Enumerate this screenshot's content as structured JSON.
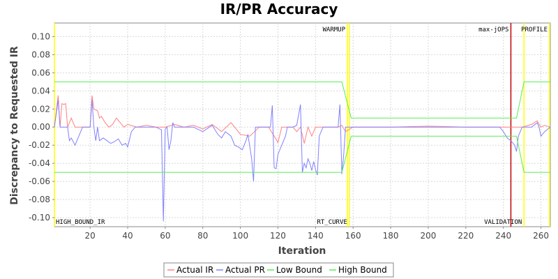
{
  "chart_data": {
    "type": "line",
    "title": "IR/PR Accuracy",
    "xlabel": "Iteration",
    "ylabel": "Discrepancy to Requested IR",
    "xlim": [
      1,
      265
    ],
    "ylim": [
      -0.11,
      0.115
    ],
    "x_ticks": [
      20,
      40,
      60,
      80,
      100,
      120,
      140,
      160,
      180,
      200,
      220,
      240,
      260
    ],
    "y_ticks": [
      -0.1,
      -0.08,
      -0.06,
      -0.04,
      -0.02,
      0.0,
      0.02,
      0.04,
      0.06,
      0.08,
      0.1
    ],
    "y_tick_labels": [
      "-0.10",
      "-0.08",
      "-0.06",
      "-0.04",
      "-0.02",
      "0.00",
      "0.02",
      "0.04",
      "0.06",
      "0.08",
      "0.10"
    ],
    "grid": true,
    "legend_position": "bottom",
    "markers": [
      {
        "label": "HIGH_BOUND_IR",
        "x": 1,
        "color": "#FFFF00",
        "label_pos": "bottom"
      },
      {
        "label": "WARMUP",
        "x": 157,
        "color": "#FFFF00",
        "label_pos": "top"
      },
      {
        "label": "RT_CURVE",
        "x": 158,
        "color": "#FFFF00",
        "label_pos": "bottom"
      },
      {
        "label": "max-jOPS",
        "x": 244,
        "color": "#C00000",
        "label_pos": "top"
      },
      {
        "label": "VALIDATION",
        "x": 251,
        "color": "#FFFF00",
        "label_pos": "bottom"
      },
      {
        "label": "PROFILE",
        "x": 265,
        "color": "#FFFF00",
        "label_pos": "top"
      }
    ],
    "series": [
      {
        "name": "Actual IR",
        "color": "#FF8080",
        "points": [
          [
            1,
            0
          ],
          [
            3,
            0.035
          ],
          [
            4,
            0
          ],
          [
            5,
            0.026
          ],
          [
            6,
            0.025
          ],
          [
            7,
            0.026
          ],
          [
            8,
            0
          ],
          [
            10,
            0.01
          ],
          [
            12,
            0
          ],
          [
            20,
            0
          ],
          [
            21,
            0.035
          ],
          [
            22,
            0.02
          ],
          [
            24,
            0.018
          ],
          [
            25,
            0.01
          ],
          [
            26,
            0.012
          ],
          [
            28,
            0.005
          ],
          [
            30,
            0
          ],
          [
            32,
            0.003
          ],
          [
            34,
            0.01
          ],
          [
            36,
            0.005
          ],
          [
            38,
            0
          ],
          [
            40,
            0.003
          ],
          [
            45,
            0
          ],
          [
            50,
            0.002
          ],
          [
            55,
            0
          ],
          [
            60,
            0
          ],
          [
            65,
            0.003
          ],
          [
            70,
            0
          ],
          [
            75,
            0.002
          ],
          [
            80,
            -0.002
          ],
          [
            85,
            0.003
          ],
          [
            90,
            -0.005
          ],
          [
            95,
            0.005
          ],
          [
            100,
            -0.008
          ],
          [
            105,
            -0.01
          ],
          [
            110,
            0
          ],
          [
            115,
            0
          ],
          [
            118,
            -0.01
          ],
          [
            120,
            -0.017
          ],
          [
            122,
            0
          ],
          [
            125,
            0
          ],
          [
            128,
            0
          ],
          [
            130,
            -0.005
          ],
          [
            132,
            0
          ],
          [
            134,
            -0.018
          ],
          [
            136,
            0
          ],
          [
            138,
            -0.01
          ],
          [
            140,
            0
          ],
          [
            145,
            0
          ],
          [
            150,
            0
          ],
          [
            152,
            0
          ],
          [
            154,
            0.002
          ],
          [
            156,
            -0.005
          ],
          [
            160,
            0
          ],
          [
            180,
            0
          ],
          [
            200,
            0.001
          ],
          [
            220,
            0
          ],
          [
            240,
            0
          ],
          [
            245,
            0
          ],
          [
            250,
            0
          ],
          [
            255,
            0.003
          ],
          [
            258,
            0.007
          ],
          [
            260,
            0
          ],
          [
            262,
            0.002
          ],
          [
            265,
            0
          ]
        ]
      },
      {
        "name": "Actual PR",
        "color": "#8080FF",
        "points": [
          [
            1,
            0
          ],
          [
            3,
            0.03
          ],
          [
            4,
            0
          ],
          [
            8,
            0
          ],
          [
            9,
            -0.015
          ],
          [
            10,
            -0.012
          ],
          [
            12,
            -0.02
          ],
          [
            14,
            -0.01
          ],
          [
            16,
            0
          ],
          [
            20,
            0
          ],
          [
            21,
            0.03
          ],
          [
            22,
            0
          ],
          [
            23,
            -0.015
          ],
          [
            24,
            0
          ],
          [
            25,
            -0.015
          ],
          [
            27,
            -0.012
          ],
          [
            29,
            -0.015
          ],
          [
            31,
            -0.018
          ],
          [
            33,
            -0.016
          ],
          [
            35,
            -0.013
          ],
          [
            37,
            -0.02
          ],
          [
            39,
            -0.018
          ],
          [
            40,
            -0.022
          ],
          [
            42,
            -0.005
          ],
          [
            44,
            0
          ],
          [
            50,
            0
          ],
          [
            55,
            0
          ],
          [
            58,
            -0.003
          ],
          [
            59,
            -0.104
          ],
          [
            60,
            -0.002
          ],
          [
            61,
            0
          ],
          [
            62,
            -0.025
          ],
          [
            63,
            -0.015
          ],
          [
            64,
            0.005
          ],
          [
            65,
            0
          ],
          [
            70,
            0
          ],
          [
            75,
            0
          ],
          [
            80,
            -0.005
          ],
          [
            85,
            0.002
          ],
          [
            88,
            -0.008
          ],
          [
            90,
            -0.012
          ],
          [
            92,
            -0.005
          ],
          [
            95,
            -0.01
          ],
          [
            97,
            -0.02
          ],
          [
            99,
            -0.022
          ],
          [
            101,
            -0.025
          ],
          [
            103,
            -0.015
          ],
          [
            104,
            -0.008
          ],
          [
            106,
            -0.035
          ],
          [
            107,
            -0.06
          ],
          [
            108,
            0
          ],
          [
            112,
            0
          ],
          [
            116,
            0
          ],
          [
            117,
            0.024
          ],
          [
            118,
            -0.045
          ],
          [
            119,
            -0.046
          ],
          [
            120,
            -0.03
          ],
          [
            122,
            -0.02
          ],
          [
            124,
            -0.01
          ],
          [
            125,
            0
          ],
          [
            128,
            0
          ],
          [
            130,
            0.002
          ],
          [
            132,
            0.025
          ],
          [
            133,
            -0.05
          ],
          [
            134,
            -0.04
          ],
          [
            135,
            -0.045
          ],
          [
            136,
            -0.035
          ],
          [
            137,
            -0.04
          ],
          [
            138,
            -0.048
          ],
          [
            139,
            -0.038
          ],
          [
            140,
            -0.047
          ],
          [
            141,
            -0.053
          ],
          [
            142,
            -0.01
          ],
          [
            144,
            0
          ],
          [
            146,
            0
          ],
          [
            148,
            0
          ],
          [
            150,
            0
          ],
          [
            152,
            0
          ],
          [
            153,
            0.025
          ],
          [
            154,
            -0.052
          ],
          [
            155,
            -0.03
          ],
          [
            156,
            0
          ],
          [
            160,
            0
          ],
          [
            180,
            0
          ],
          [
            200,
            0
          ],
          [
            220,
            0
          ],
          [
            238,
            0
          ],
          [
            240,
            -0.005
          ],
          [
            242,
            -0.012
          ],
          [
            244,
            -0.015
          ],
          [
            246,
            -0.02
          ],
          [
            247,
            -0.027
          ],
          [
            248,
            -0.01
          ],
          [
            250,
            0
          ],
          [
            255,
            0
          ],
          [
            258,
            0.005
          ],
          [
            259,
            0
          ],
          [
            260,
            -0.01
          ],
          [
            262,
            -0.005
          ],
          [
            265,
            0
          ]
        ]
      },
      {
        "name": "Low Bound",
        "color": "#55EE55",
        "points": [
          [
            1,
            -0.05
          ],
          [
            154,
            -0.05
          ],
          [
            159,
            -0.01
          ],
          [
            247,
            -0.01
          ],
          [
            251,
            -0.05
          ],
          [
            265,
            -0.05
          ]
        ]
      },
      {
        "name": "High Bound",
        "color": "#55EE55",
        "points": [
          [
            1,
            0.05
          ],
          [
            154,
            0.05
          ],
          [
            159,
            0.01
          ],
          [
            247,
            0.01
          ],
          [
            251,
            0.05
          ],
          [
            265,
            0.05
          ]
        ]
      }
    ]
  }
}
